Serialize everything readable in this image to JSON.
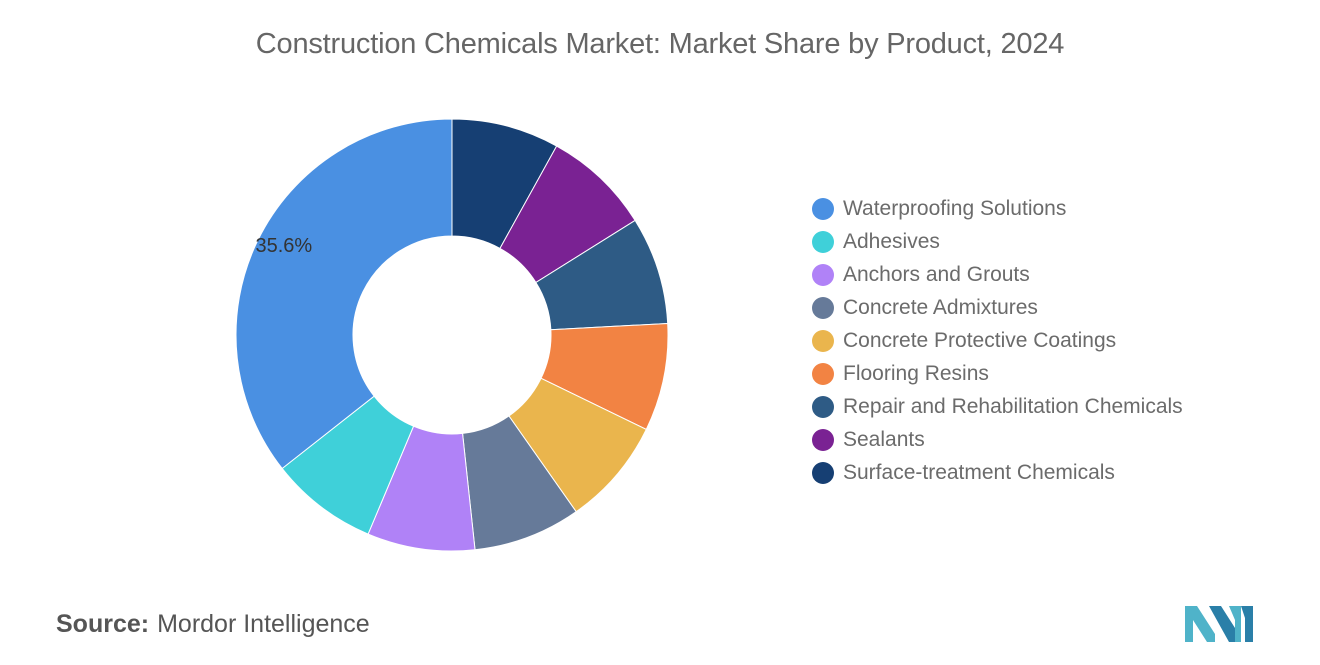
{
  "chart_data": {
    "type": "pie",
    "donut": true,
    "title": "Construction Chemicals Market: Market Share by Product, 2024",
    "series": [
      {
        "name": "Waterproofing Solutions",
        "value": 35.6,
        "color": "#4a90e2",
        "label": "35.6%"
      },
      {
        "name": "Adhesives",
        "value": 8.05,
        "color": "#3fd0d9",
        "label": ""
      },
      {
        "name": "Anchors and Grouts",
        "value": 8.05,
        "color": "#b082f7",
        "label": ""
      },
      {
        "name": "Concrete Admixtures",
        "value": 8.05,
        "color": "#667a99",
        "label": ""
      },
      {
        "name": "Concrete Protective Coatings",
        "value": 8.05,
        "color": "#eab54d",
        "label": ""
      },
      {
        "name": "Flooring Resins",
        "value": 8.05,
        "color": "#f28343",
        "label": ""
      },
      {
        "name": "Repair and Rehabilitation Chemicals",
        "value": 8.05,
        "color": "#2e5b85",
        "label": ""
      },
      {
        "name": "Sealants",
        "value": 8.05,
        "color": "#7a2293",
        "label": ""
      },
      {
        "name": "Surface-treatment Chemicals",
        "value": 8.05,
        "color": "#163f73",
        "label": ""
      }
    ],
    "legend_position": "right"
  },
  "source": {
    "label": "Source:",
    "value": "Mordor Intelligence"
  },
  "logo": {
    "icon": "mordor-intelligence-logo-icon",
    "color": "#4fb3c9"
  }
}
